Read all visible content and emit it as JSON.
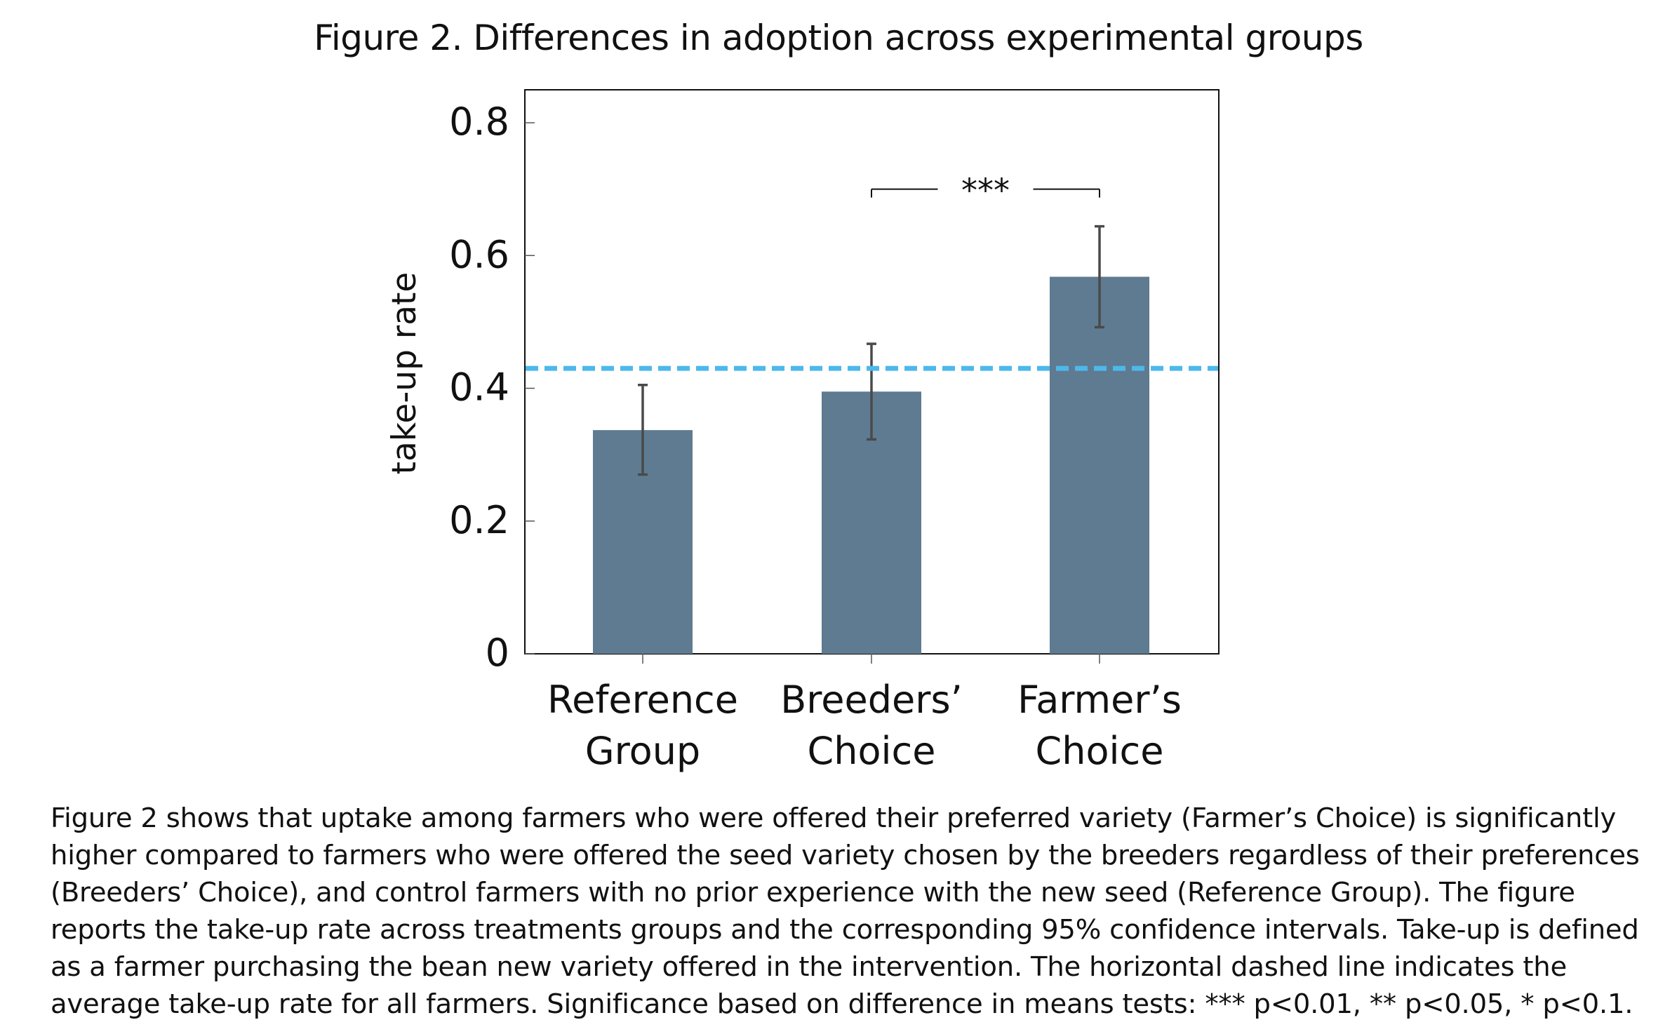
{
  "figure": {
    "title": "Figure 2. Differences in adoption across experimental groups",
    "caption": "Figure 2 shows that uptake among farmers who were offered their preferred variety (Farmer’s Choice) is significantly higher compared to farmers who were offered the seed variety chosen by the breeders regardless of their preferences (Breeders’ Choice), and control farmers with no prior experience with the new seed (Reference Group). The figure reports the take-up rate across treatments groups and the corresponding 95% confidence intervals.  Take-up is defined as a farmer purchasing the bean new variety offered in the intervention. The horizontal dashed line indicates the average take-up rate for all farmers. Significance based on difference in means tests: *** p<0.01, ** p<0.05, * p<0.1."
  },
  "chart_data": {
    "type": "bar",
    "title": "Figure 2. Differences in adoption across experimental groups",
    "xlabel": "",
    "ylabel": "take-up rate",
    "ylim": [
      0,
      0.85
    ],
    "yticks": [
      0,
      0.2,
      0.4,
      0.6,
      0.8
    ],
    "ytick_labels": [
      "0",
      "0.2",
      "0.4",
      "0.6",
      "0.8"
    ],
    "categories": [
      "Reference Group",
      "Breeders’ Choice",
      "Farmer’s Choice"
    ],
    "category_lines": [
      [
        "Reference",
        "Group"
      ],
      [
        "Breeders’",
        "Choice"
      ],
      [
        "Farmer’s",
        "Choice"
      ]
    ],
    "values": [
      0.337,
      0.395,
      0.568
    ],
    "ci_lower": [
      0.27,
      0.323,
      0.492
    ],
    "ci_upper": [
      0.405,
      0.467,
      0.644
    ],
    "average_line": 0.43,
    "significance": {
      "from": "Breeders’ Choice",
      "to": "Farmer’s Choice",
      "label": "***",
      "y": 0.7
    },
    "grid": false,
    "legend": "none",
    "colors": {
      "bar": "#5e7b91",
      "error_bar": "#4a4a4a",
      "average_line": "#4db8ea",
      "axis": "#111111"
    }
  }
}
